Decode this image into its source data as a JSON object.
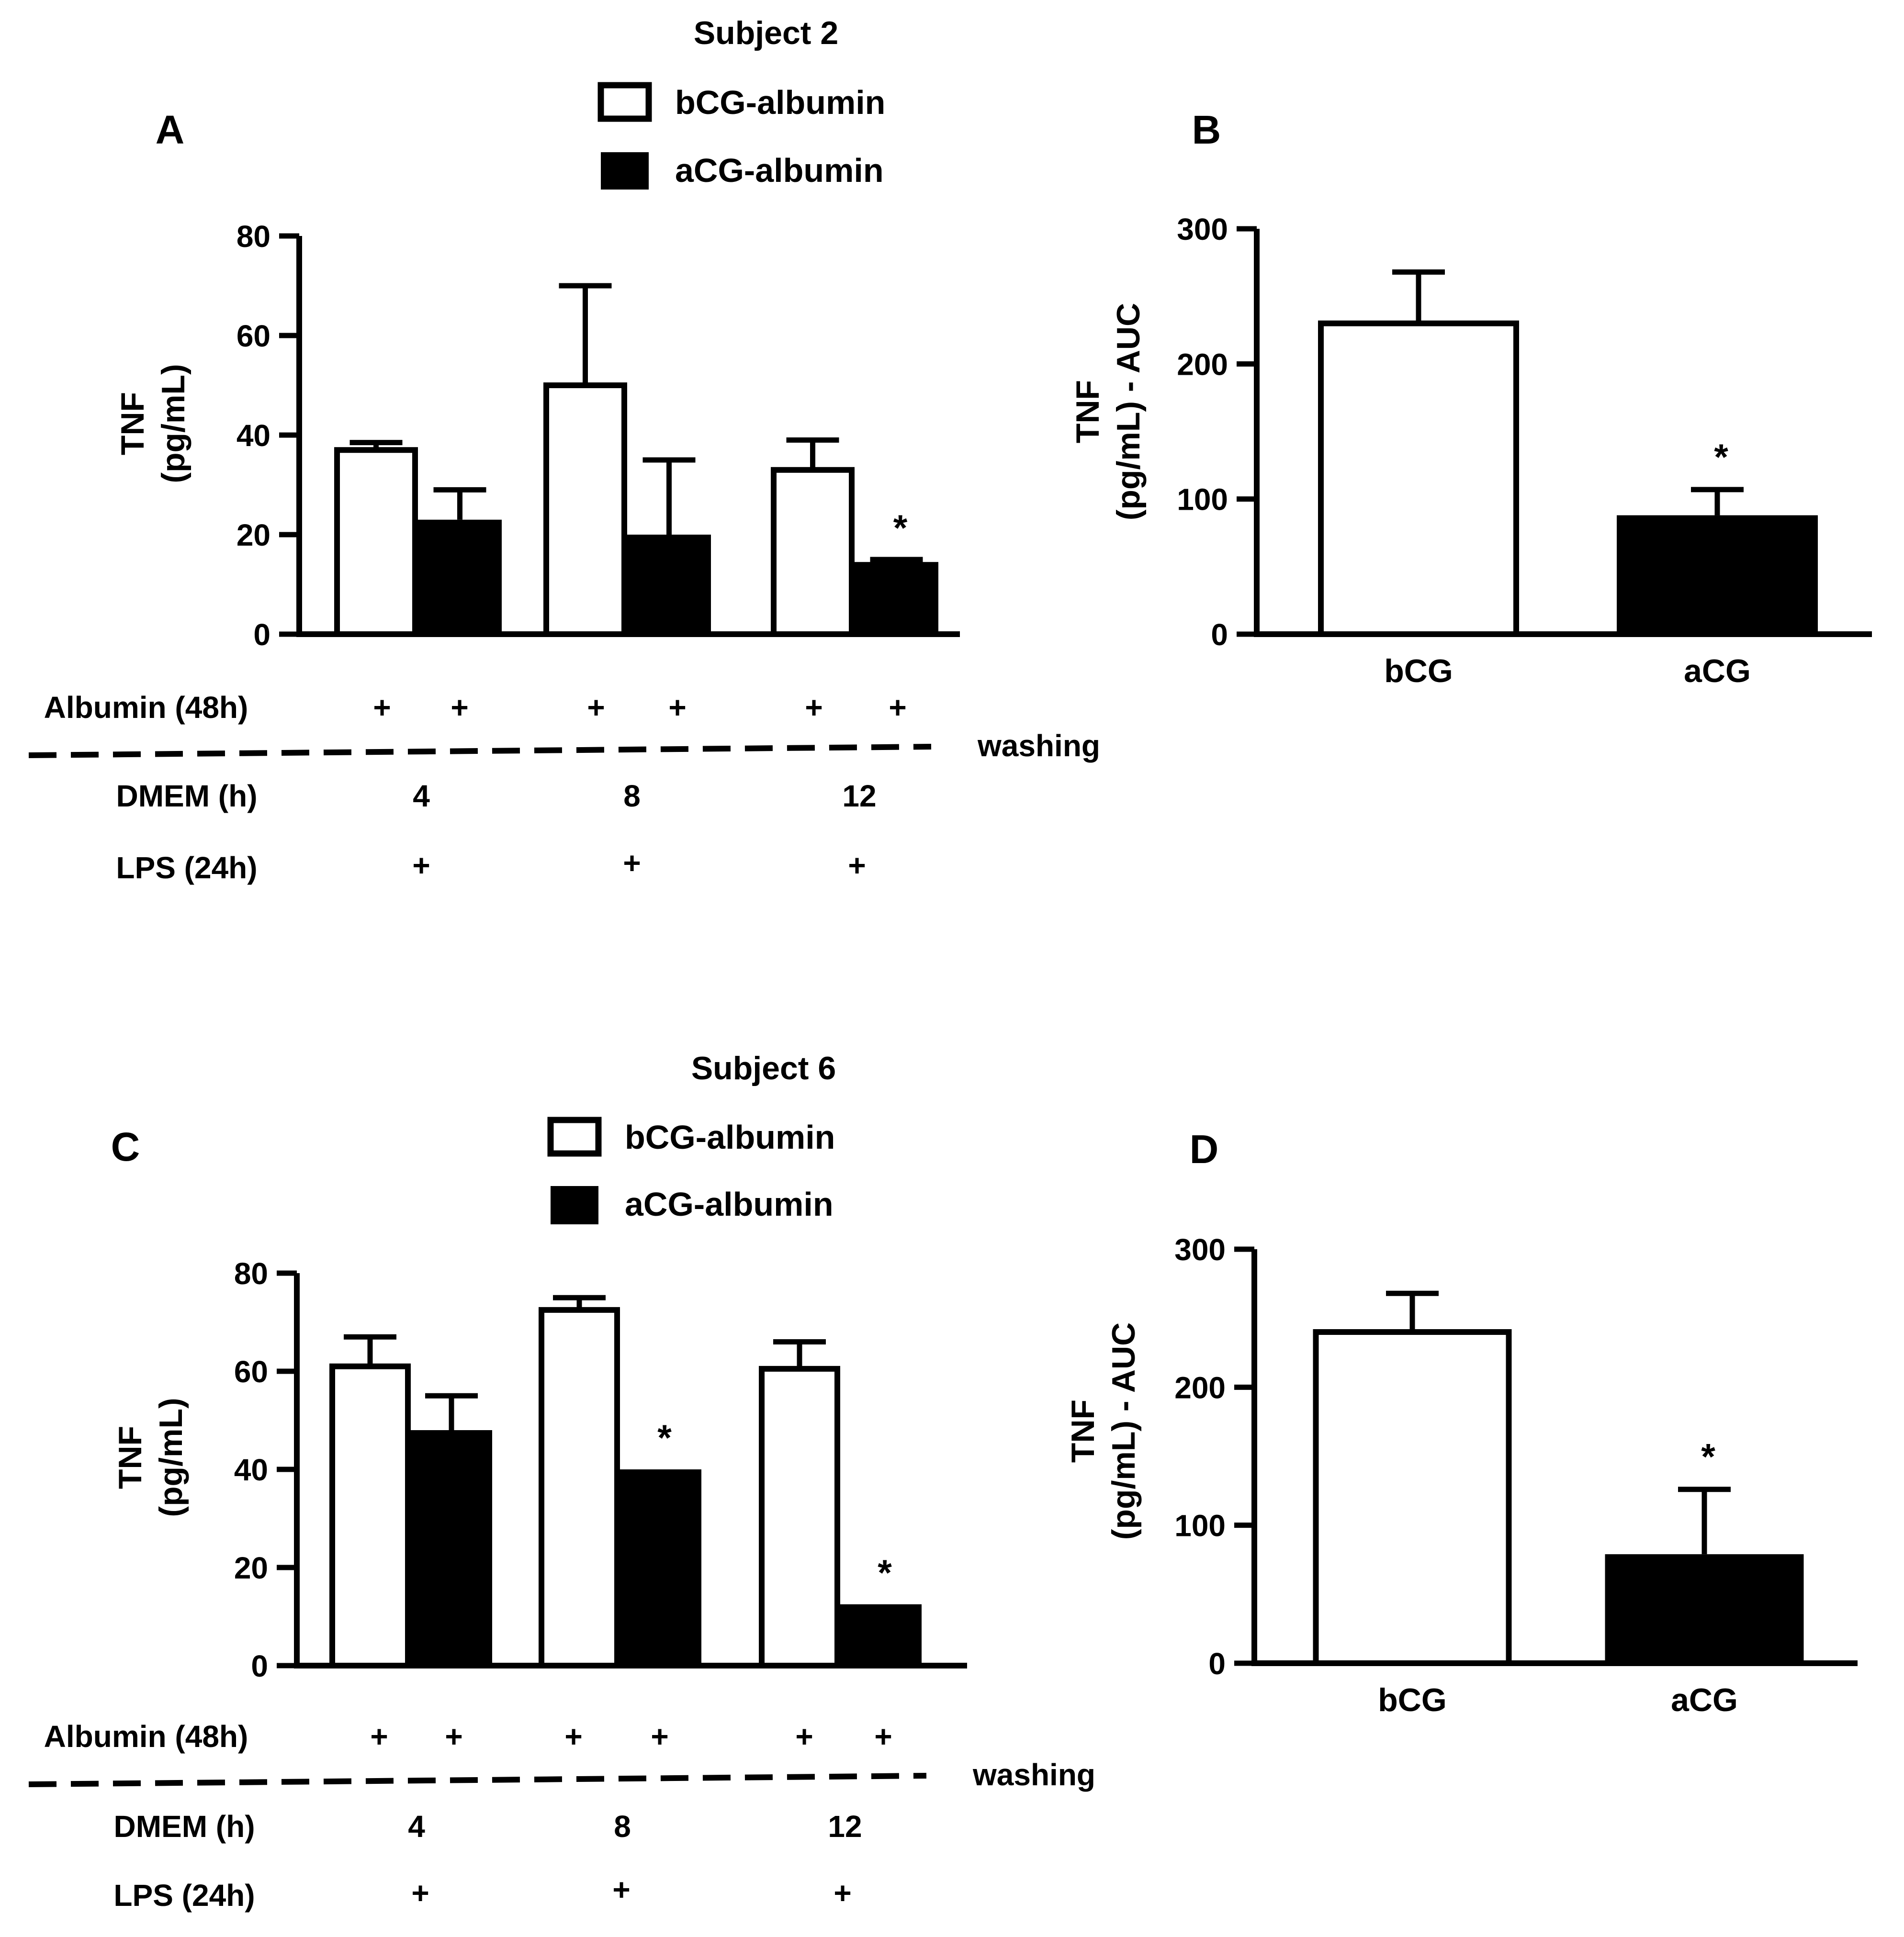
{
  "colors": {
    "ink": "#000000",
    "open_fill": "#ffffff",
    "solid_fill": "#000000"
  },
  "chart_data": [
    {
      "panel": "A",
      "type": "bar",
      "subject_title": "Subject 2",
      "legend": [
        {
          "name": "bCG-albumin",
          "style": "open"
        },
        {
          "name": "aCG-albumin",
          "style": "solid"
        }
      ],
      "ylabel": [
        "TNF",
        "(pg/mL)"
      ],
      "ylim": [
        0,
        80
      ],
      "yticks": [
        0,
        20,
        40,
        60,
        80
      ],
      "series": [
        {
          "name": "bCG-albumin",
          "style": "open",
          "values": [
            37,
            50,
            33
          ],
          "errors": [
            1.5,
            20,
            6
          ]
        },
        {
          "name": "aCG-albumin",
          "style": "solid",
          "values": [
            23,
            20,
            14.5
          ],
          "errors": [
            6,
            15,
            0.5
          ]
        }
      ],
      "significance": [
        {
          "group": 2,
          "series": 1,
          "mark": "*"
        }
      ],
      "conditions": {
        "albumin_label": "Albumin (48h)",
        "albumin_marks": [
          "+",
          "+",
          "+",
          "+",
          "+",
          "+"
        ],
        "washing_label": "washing",
        "dmem_label": "DMEM (h)",
        "dmem_values": [
          "4",
          "8",
          "12"
        ],
        "lps_label": "LPS (24h)",
        "lps_marks": [
          "+",
          "+",
          "+"
        ]
      }
    },
    {
      "panel": "B",
      "type": "bar",
      "categories": [
        "bCG",
        "aCG"
      ],
      "styles": [
        "open",
        "solid"
      ],
      "values": [
        230,
        88
      ],
      "errors": [
        38,
        19
      ],
      "ylabel": [
        "TNF",
        "(pg/mL) - AUC"
      ],
      "ylim": [
        0,
        300
      ],
      "yticks": [
        0,
        100,
        200,
        300
      ],
      "significance": [
        {
          "index": 1,
          "mark": "*"
        }
      ]
    },
    {
      "panel": "C",
      "type": "bar",
      "subject_title": "Subject 6",
      "legend": [
        {
          "name": "bCG-albumin",
          "style": "open"
        },
        {
          "name": "aCG-albumin",
          "style": "solid"
        }
      ],
      "ylabel": [
        "TNF",
        "(pg/mL)"
      ],
      "ylim": [
        0,
        80
      ],
      "yticks": [
        0,
        20,
        40,
        60,
        80
      ],
      "series": [
        {
          "name": "bCG-albumin",
          "style": "open",
          "values": [
            61,
            72.5,
            60.5
          ],
          "errors": [
            6,
            2.5,
            5.5
          ]
        },
        {
          "name": "aCG-albumin",
          "style": "solid",
          "values": [
            48,
            40,
            12.5
          ],
          "errors": [
            7,
            0,
            0
          ]
        }
      ],
      "significance": [
        {
          "group": 1,
          "series": 1,
          "mark": "*"
        },
        {
          "group": 2,
          "series": 1,
          "mark": "*"
        }
      ],
      "conditions": {
        "albumin_label": "Albumin (48h)",
        "albumin_marks": [
          "+",
          "+",
          "+",
          "+",
          "+",
          "+"
        ],
        "washing_label": "washing",
        "dmem_label": "DMEM (h)",
        "dmem_values": [
          "4",
          "8",
          "12"
        ],
        "lps_label": "LPS (24h)",
        "lps_marks": [
          "+",
          "+",
          "+"
        ]
      }
    },
    {
      "panel": "D",
      "type": "bar",
      "categories": [
        "bCG",
        "aCG"
      ],
      "styles": [
        "open",
        "solid"
      ],
      "values": [
        240,
        79
      ],
      "errors": [
        28,
        47
      ],
      "ylabel": [
        "TNF",
        "(pg/mL) - AUC"
      ],
      "ylim": [
        0,
        300
      ],
      "yticks": [
        0,
        100,
        200,
        300
      ],
      "significance": [
        {
          "index": 1,
          "mark": "*"
        }
      ]
    }
  ]
}
